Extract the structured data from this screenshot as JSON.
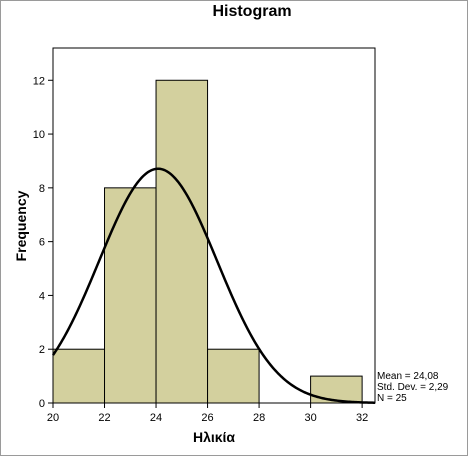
{
  "chart_data": {
    "type": "bar",
    "subtype": "histogram-with-normal-curve",
    "title": "Histogram",
    "xlabel": "Ηλικία",
    "ylabel": "Frequency",
    "bins": [
      {
        "from": 20,
        "to": 22,
        "count": 2
      },
      {
        "from": 22,
        "to": 24,
        "count": 8
      },
      {
        "from": 24,
        "to": 26,
        "count": 12
      },
      {
        "from": 26,
        "to": 28,
        "count": 2
      },
      {
        "from": 28,
        "to": 30,
        "count": 0
      },
      {
        "from": 30,
        "to": 32,
        "count": 1
      }
    ],
    "xlim": [
      20,
      32.5
    ],
    "ylim": [
      0,
      13.2
    ],
    "xticks": [
      20,
      22,
      24,
      26,
      28,
      30,
      32
    ],
    "yticks": [
      0,
      2,
      4,
      6,
      8,
      10,
      12
    ],
    "normal_curve": {
      "mean": 24.08,
      "sd": 2.29,
      "n": 25,
      "bin_width": 2
    },
    "stats": {
      "mean_label": "Mean = 24,08",
      "sd_label": "Std. Dev. = 2,29",
      "n_label": "N = 25"
    },
    "bar_color": "#d3d09e",
    "curve_color": "#000000",
    "grid": false,
    "legend": "none"
  }
}
